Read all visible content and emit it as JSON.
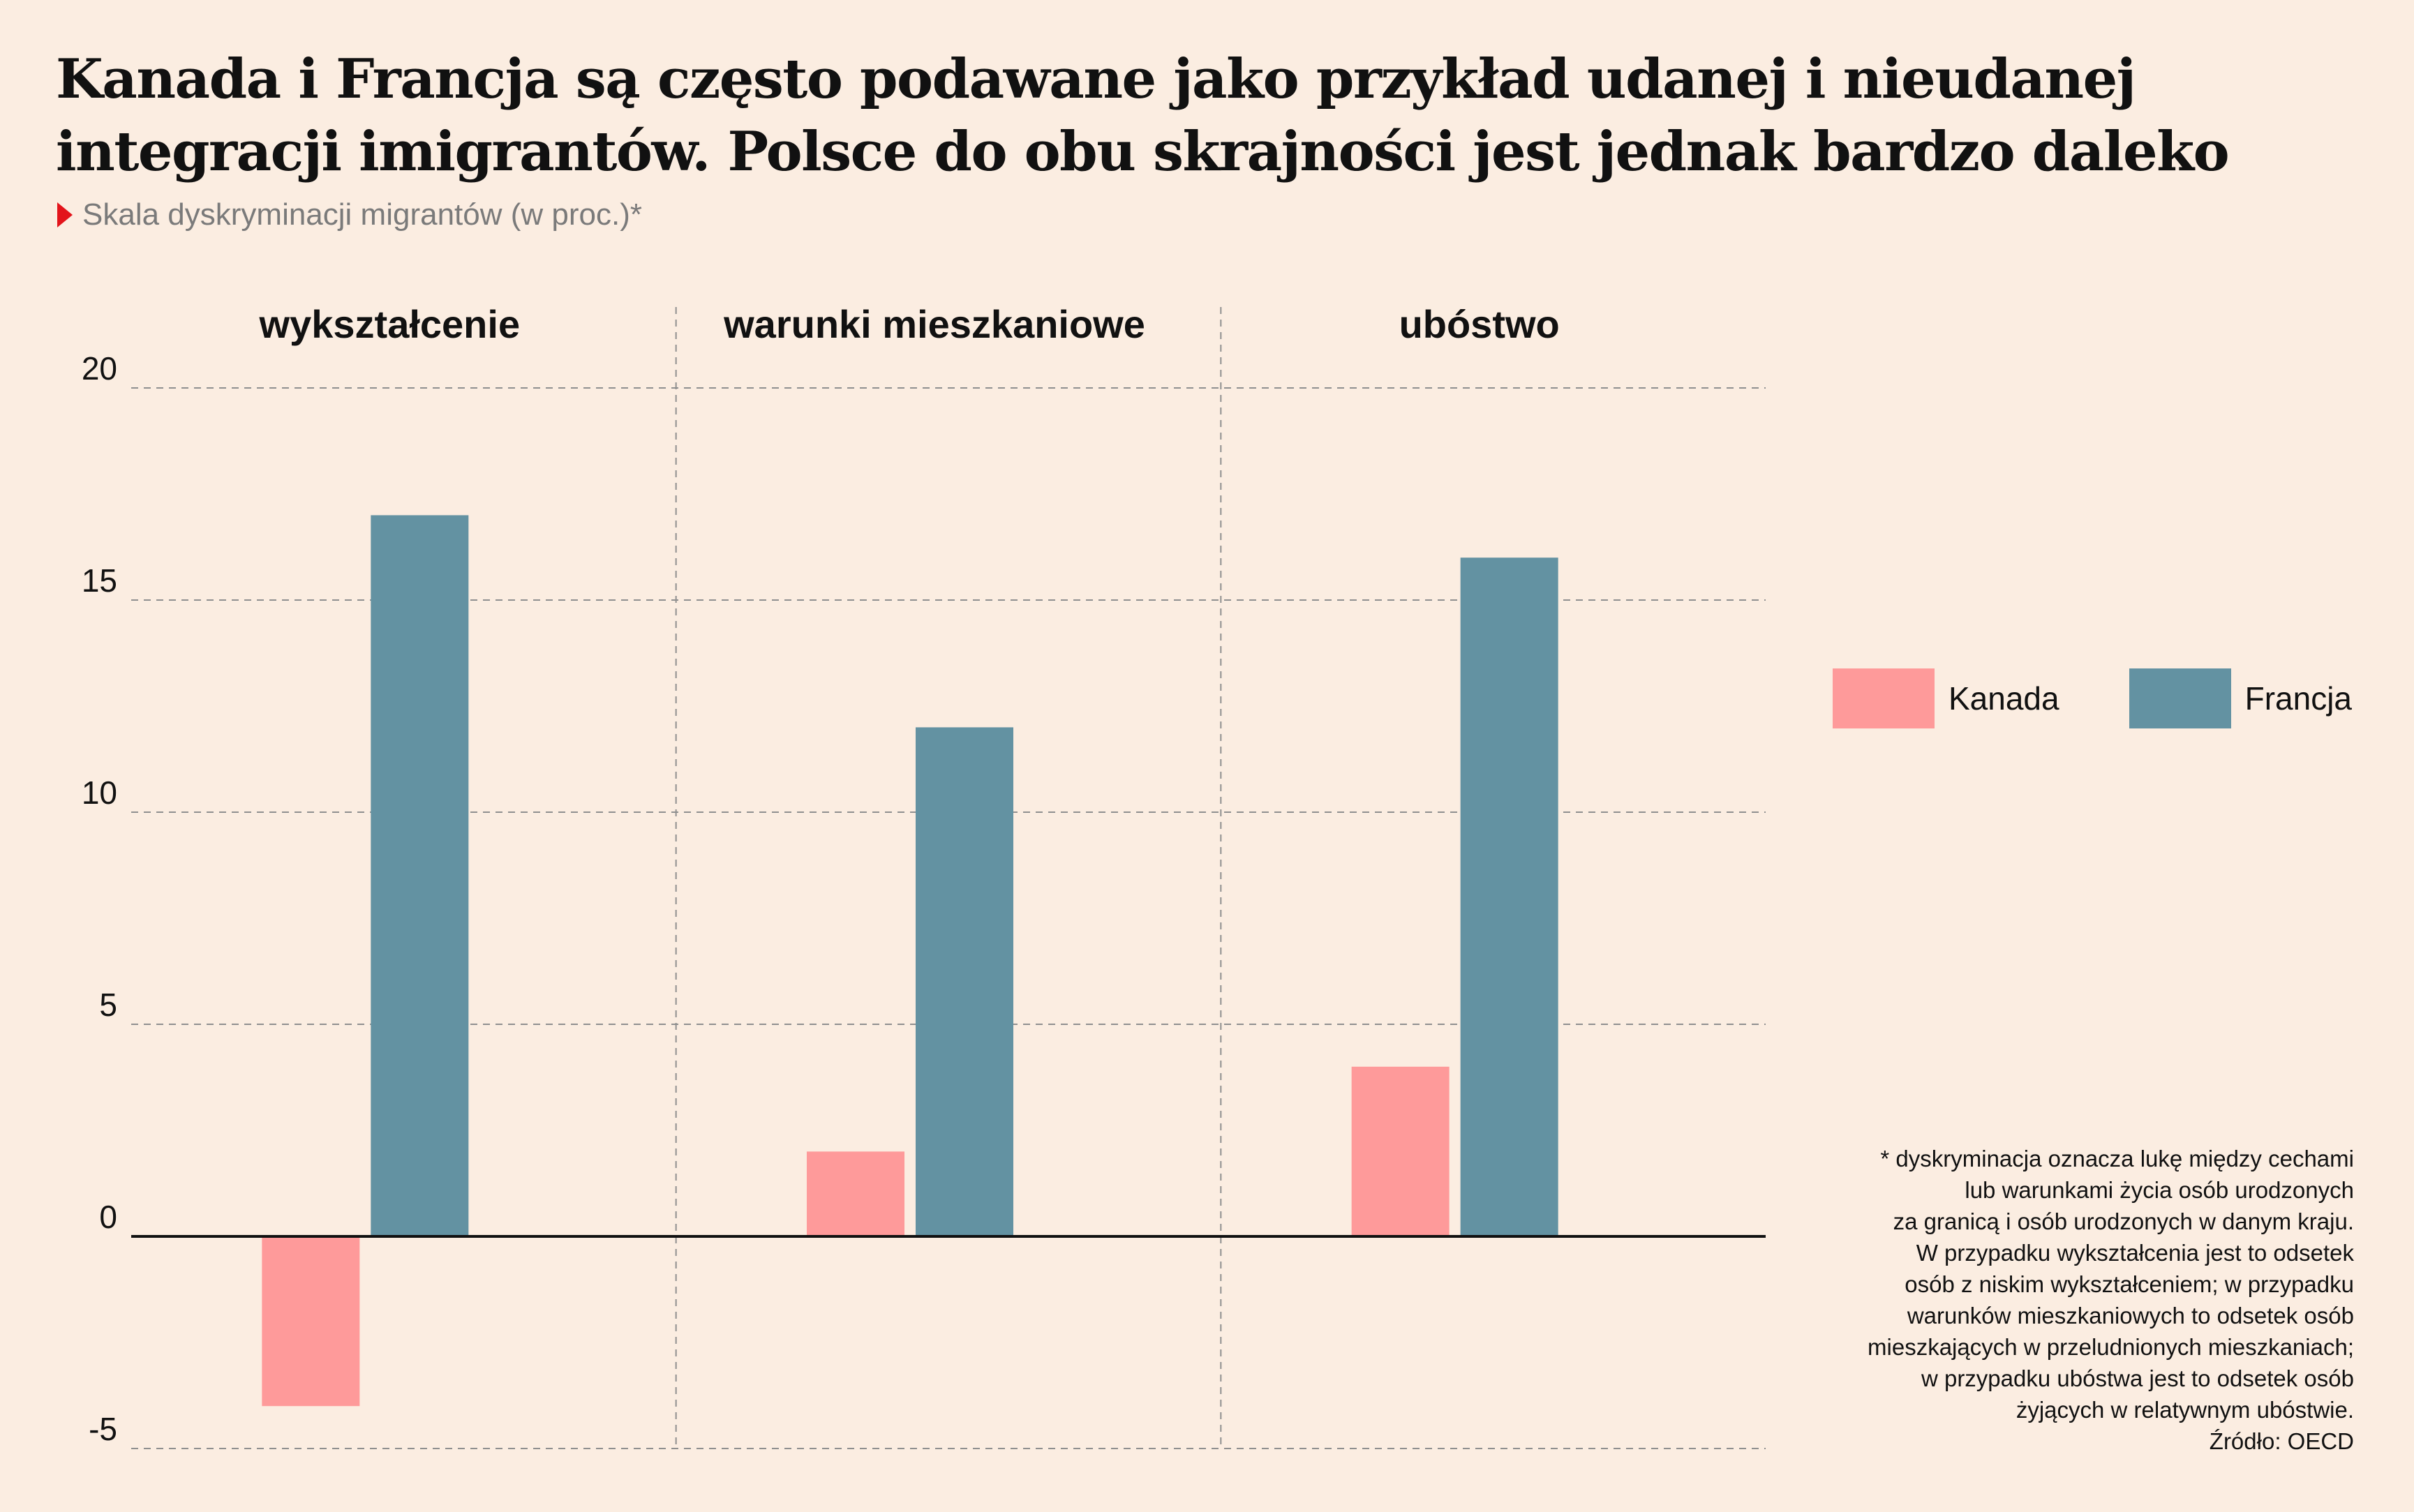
{
  "title": "Kanada i Francja są często podawane jako przykład udanej i nieudanej integracji imigrantów. Polsce do obu skrajności jest jednak bardzo daleko",
  "subtitle": "Skala dyskryminacji migrantów (w proc.)*",
  "colors": {
    "background": "#fbede1",
    "Kanada": "#fe9a9a",
    "Francja": "#6392a2",
    "accent": "#e3141b"
  },
  "chart_data": {
    "type": "bar",
    "title": "Kanada i Francja są często podawane jako przykład udanej i nieudanej integracji imigrantów. Polsce do obu skrajności jest jednak bardzo daleko",
    "subtitle": "Skala dyskryminacji migrantów (w proc.)*",
    "categories": [
      "wykształcenie",
      "warunki mieszkaniowe",
      "ubóstwo"
    ],
    "series": [
      {
        "name": "Kanada",
        "values": [
          -4,
          2,
          4
        ]
      },
      {
        "name": "Francja",
        "values": [
          17,
          12,
          16
        ]
      }
    ],
    "ylim": [
      -5,
      20
    ],
    "yticks": [
      -5,
      0,
      5,
      10,
      15,
      20
    ],
    "ytick_labels": [
      "-5",
      "0",
      "5",
      "10",
      "15",
      "20"
    ],
    "xlabel": "",
    "ylabel": "",
    "grid": true,
    "legend": "right"
  },
  "note": {
    "lines": [
      "* dyskryminacja oznacza lukę między cechami",
      "lub warunkami życia osób urodzonych",
      "za granicą i osób urodzonych w danym kraju.",
      "W przypadku wykształcenia jest to odsetek",
      "osób z niskim wykształceniem; w przypadku",
      "warunków mieszkaniowych to odsetek osób",
      "mieszkających w przeludnionych mieszkaniach;",
      "w przypadku ubóstwa jest to odsetek osób",
      "żyjących w relatywnym ubóstwie.",
      "Źródło: OECD"
    ]
  }
}
